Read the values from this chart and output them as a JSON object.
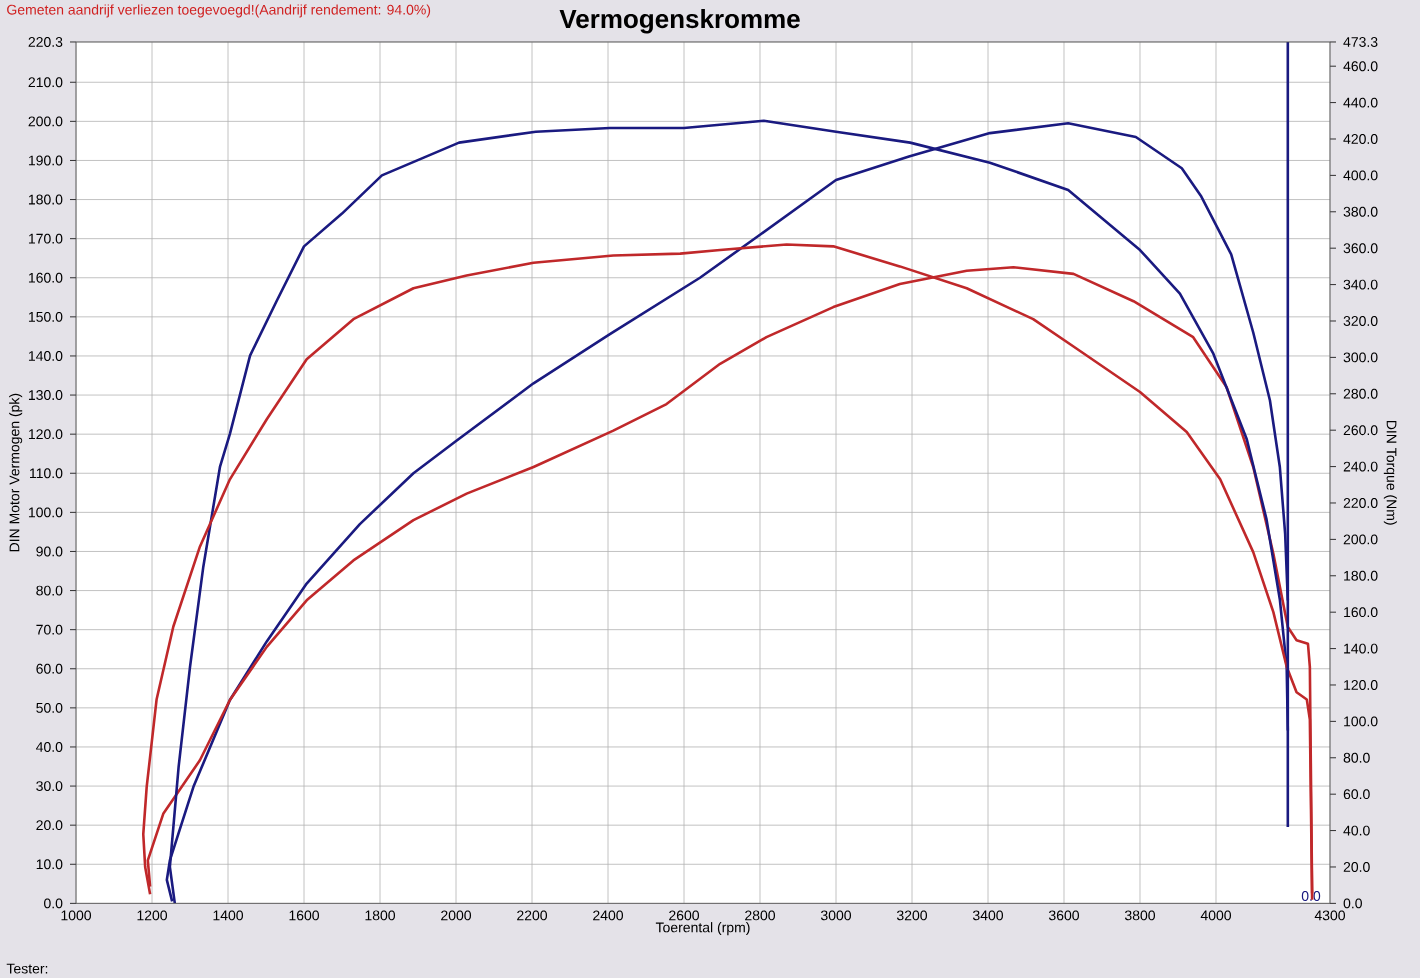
{
  "chart_data": {
    "type": "line",
    "title": "Vermogenskromme",
    "xlabel": "Toerental (rpm)",
    "ylabel": "DIN Motor Vermogen (pk)",
    "y2label": "DIN Torque (Nm)",
    "annotations": [
      "Gemeten aandrijf verliezen toegevoegd!(Aandrijf rendement: 94.0%)",
      "Tester:",
      {
        "text": "0.0",
        "x": 4250,
        "y": 0
      }
    ],
    "xlim": [
      1000,
      4300
    ],
    "xticks": [
      1000,
      1200,
      1400,
      1600,
      1800,
      2000,
      2200,
      2400,
      2600,
      2800,
      3000,
      3200,
      3400,
      3600,
      3800,
      4000,
      4300
    ],
    "ylim": [
      0,
      220.3
    ],
    "yticks": [
      {
        "value": 0,
        "label": "0.0"
      },
      {
        "value": 10,
        "label": "10.0"
      },
      {
        "value": 20,
        "label": "20.0"
      },
      {
        "value": 30,
        "label": "30.0"
      },
      {
        "value": 40,
        "label": "40.0"
      },
      {
        "value": 50,
        "label": "50.0"
      },
      {
        "value": 60,
        "label": "60.0"
      },
      {
        "value": 70,
        "label": "70.0"
      },
      {
        "value": 80,
        "label": "80.0"
      },
      {
        "value": 90,
        "label": "90.0"
      },
      {
        "value": 100,
        "label": "100.0"
      },
      {
        "value": 110,
        "label": "110.0"
      },
      {
        "value": 120,
        "label": "120.0"
      },
      {
        "value": 130,
        "label": "130.0"
      },
      {
        "value": 140,
        "label": "140.0"
      },
      {
        "value": 150,
        "label": "150.0"
      },
      {
        "value": 160,
        "label": "160.0"
      },
      {
        "value": 170,
        "label": "170.0"
      },
      {
        "value": 180,
        "label": "180.0"
      },
      {
        "value": 190,
        "label": "190.0"
      },
      {
        "value": 200,
        "label": "200.0"
      },
      {
        "value": 210,
        "label": "210.0"
      },
      {
        "value": 220.3,
        "label": "220.3"
      }
    ],
    "y2lim": [
      0,
      473.3
    ],
    "y2ticks": [
      {
        "value": 0,
        "label": "0.0"
      },
      {
        "value": 20,
        "label": "20.0"
      },
      {
        "value": 40,
        "label": "40.0"
      },
      {
        "value": 60,
        "label": "60.0"
      },
      {
        "value": 80,
        "label": "80.0"
      },
      {
        "value": 100,
        "label": "100.0"
      },
      {
        "value": 120,
        "label": "120.0"
      },
      {
        "value": 140,
        "label": "140.0"
      },
      {
        "value": 160,
        "label": "160.0"
      },
      {
        "value": 180,
        "label": "180.0"
      },
      {
        "value": 200,
        "label": "200.0"
      },
      {
        "value": 220,
        "label": "220.0"
      },
      {
        "value": 240,
        "label": "240.0"
      },
      {
        "value": 260,
        "label": "260.0"
      },
      {
        "value": 280,
        "label": "280.0"
      },
      {
        "value": 300,
        "label": "300.0"
      },
      {
        "value": 320,
        "label": "320.0"
      },
      {
        "value": 340,
        "label": "340.0"
      },
      {
        "value": 360,
        "label": "360.0"
      },
      {
        "value": 380,
        "label": "380.0"
      },
      {
        "value": 400,
        "label": "400.0"
      },
      {
        "value": 420,
        "label": "420.0"
      },
      {
        "value": 440,
        "label": "440.0"
      },
      {
        "value": 460,
        "label": "460.0"
      },
      {
        "value": 473.3,
        "label": "473.3"
      }
    ],
    "grid": true,
    "series": [
      {
        "color": "#1a1a80",
        "axis": "y2",
        "x": [
          1260,
          1247,
          1270,
          1300,
          1335,
          1379,
          1405,
          1458,
          1528,
          1600,
          1700,
          1805,
          2008,
          2210,
          2405,
          2600,
          2810,
          3000,
          3195,
          3405,
          3611,
          3800,
          3905,
          3993,
          4081,
          4133,
          4168,
          4186,
          4189
        ],
        "values": [
          0,
          20,
          75,
          130,
          185,
          240,
          258,
          301,
          331,
          361,
          379,
          400,
          418,
          424,
          426,
          426,
          430,
          424,
          418,
          407,
          392,
          359,
          335,
          302,
          255,
          211,
          167,
          130,
          95
        ]
      },
      {
        "color": "#1a1a80",
        "x": [
          1253,
          1239,
          1247,
          1309,
          1405,
          1502,
          1607,
          1747,
          1888,
          2002,
          2204,
          2405,
          2642,
          2800,
          3000,
          3192,
          3405,
          3611,
          3789,
          3910,
          3960,
          4040,
          4098,
          4142,
          4168,
          4182,
          4189
        ],
        "values": [
          0.5,
          6,
          11,
          29.8,
          52,
          67,
          81.8,
          97,
          110,
          118.4,
          133,
          145.6,
          160,
          171,
          185,
          191,
          197,
          199.5,
          196,
          188,
          181,
          166,
          146,
          128.6,
          111.6,
          94.5,
          77.5
        ]
      },
      {
        "color": "#c0282a",
        "axis": "y2",
        "x": [
          1195,
          1182,
          1177,
          1186,
          1212,
          1256,
          1326,
          1405,
          1502,
          1607,
          1730,
          1888,
          2028,
          2204,
          2414,
          2590,
          2695,
          2870,
          2993,
          3168,
          3344,
          3519,
          3625,
          3800,
          3923,
          4011,
          4098,
          4151,
          4186,
          4212,
          4239,
          4247,
          4253
        ],
        "values": [
          5,
          20,
          38,
          64,
          112,
          152,
          196,
          233,
          266,
          299,
          321,
          338,
          345,
          352,
          356,
          357,
          359,
          362,
          361,
          350,
          338,
          321,
          306,
          281,
          259,
          233,
          193,
          160,
          130,
          116,
          112,
          101,
          2
        ]
      },
      {
        "color": "#c0282a",
        "x": [
          1195,
          1189,
          1230,
          1326,
          1405,
          1502,
          1607,
          1730,
          1888,
          2028,
          2204,
          2414,
          2554,
          2695,
          2817,
          2993,
          3168,
          3344,
          3467,
          3625,
          3783,
          3940,
          4028,
          4098,
          4151,
          4189,
          4212,
          4242,
          4247,
          4253
        ],
        "values": [
          4.3,
          11,
          23,
          36.6,
          52,
          65.6,
          77.5,
          87.7,
          98,
          104.8,
          111.6,
          120.9,
          127.7,
          138,
          144.8,
          152.5,
          158.4,
          161.8,
          162.7,
          161,
          154,
          144.8,
          132,
          111.6,
          89.4,
          70.7,
          67.3,
          66.4,
          60.5,
          2.6
        ]
      },
      {
        "color": "#1a1a80",
        "axis": "y2",
        "x": [
          4189,
          4189
        ],
        "values": [
          42,
          473.3
        ]
      }
    ]
  }
}
